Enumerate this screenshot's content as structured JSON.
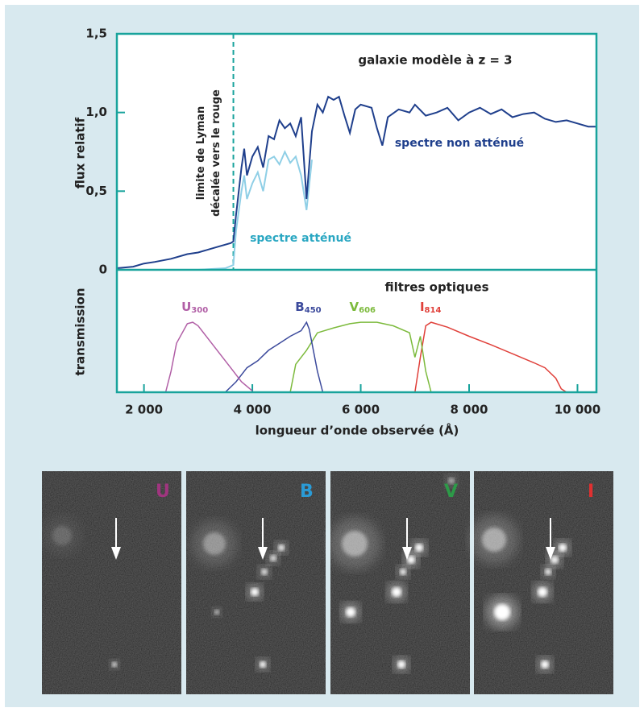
{
  "chart_data": [
    {
      "type": "line",
      "title": "galaxie modèle à z = 3",
      "y_label": "flux relatif",
      "xlim": [
        1500,
        10350
      ],
      "ylim": [
        0,
        1.5
      ],
      "yticks": [
        0,
        {
          "value": 0.5,
          "label": "0,5"
        },
        {
          "value": 1,
          "label": "1,0"
        },
        {
          "value": 1.5,
          "label": "1,5"
        }
      ],
      "annotation": {
        "x": 3650,
        "lines": [
          "limite de Lyman",
          "décalée vers le rouge"
        ]
      },
      "series": [
        {
          "name": "spectre non atténué",
          "color": "#1f3f8c",
          "x": [
            1500,
            1800,
            2000,
            2200,
            2500,
            2800,
            3000,
            3200,
            3400,
            3600,
            3650,
            3700,
            3800,
            3850,
            3900,
            4000,
            4100,
            4200,
            4300,
            4400,
            4500,
            4600,
            4700,
            4800,
            4900,
            5000,
            5100,
            5200,
            5300,
            5400,
            5500,
            5600,
            5700,
            5800,
            5900,
            6000,
            6200,
            6300,
            6400,
            6500,
            6700,
            6900,
            7000,
            7200,
            7400,
            7600,
            7800,
            8000,
            8200,
            8400,
            8600,
            8800,
            9000,
            9200,
            9400,
            9600,
            9800,
            10000,
            10200,
            10350
          ],
          "values": [
            0.01,
            0.02,
            0.04,
            0.05,
            0.07,
            0.1,
            0.11,
            0.13,
            0.15,
            0.17,
            0.18,
            0.35,
            0.65,
            0.77,
            0.6,
            0.72,
            0.78,
            0.65,
            0.85,
            0.83,
            0.95,
            0.9,
            0.93,
            0.85,
            0.97,
            0.45,
            0.88,
            1.05,
            1.0,
            1.1,
            1.08,
            1.1,
            0.98,
            0.87,
            1.02,
            1.05,
            1.03,
            0.9,
            0.79,
            0.97,
            1.02,
            1.0,
            1.05,
            0.98,
            1.0,
            1.03,
            0.95,
            1.0,
            1.03,
            0.99,
            1.02,
            0.97,
            0.99,
            1.0,
            0.96,
            0.94,
            0.95,
            0.93,
            0.91,
            0.91
          ]
        },
        {
          "name": "spectre atténué",
          "color": "#8fcfe6",
          "x": [
            1500,
            3000,
            3500,
            3650,
            3700,
            3800,
            3850,
            3900,
            4000,
            4100,
            4200,
            4300,
            4400,
            4500,
            4600,
            4700,
            4800,
            4900,
            5000,
            5100
          ],
          "values": [
            0,
            0,
            0.01,
            0.03,
            0.25,
            0.5,
            0.6,
            0.45,
            0.55,
            0.62,
            0.5,
            0.7,
            0.72,
            0.67,
            0.75,
            0.68,
            0.72,
            0.6,
            0.38,
            0.7
          ]
        }
      ]
    },
    {
      "type": "line",
      "title": "filtres optiques",
      "y_label": "transmission",
      "x_label": "longueur d’onde observée (Å)",
      "xlim": [
        1500,
        10350
      ],
      "ylim": [
        0,
        1.75
      ],
      "xticks": [
        {
          "value": 2000,
          "label": "2 000"
        },
        {
          "value": 4000,
          "label": "4 000"
        },
        {
          "value": 6000,
          "label": "6 000"
        },
        {
          "value": 8000,
          "label": "8 000"
        },
        {
          "value": 10000,
          "label": "10 000"
        }
      ],
      "series": [
        {
          "name": "U",
          "subscript": "300",
          "color": "#b15fa6",
          "x": [
            2400,
            2500,
            2600,
            2800,
            2900,
            3000,
            3200,
            3400,
            3600,
            3800,
            4000
          ],
          "values": [
            0,
            0.3,
            0.7,
            0.98,
            1.0,
            0.95,
            0.75,
            0.55,
            0.35,
            0.15,
            0.02
          ]
        },
        {
          "name": "B",
          "subscript": "450",
          "color": "#3c4a9c",
          "x": [
            3500,
            3700,
            3900,
            4100,
            4300,
            4500,
            4700,
            4900,
            5000,
            5050,
            5200,
            5300
          ],
          "values": [
            0,
            0.15,
            0.35,
            0.45,
            0.6,
            0.7,
            0.8,
            0.88,
            1.0,
            0.9,
            0.3,
            0
          ]
        },
        {
          "name": "V",
          "subscript": "606",
          "color": "#7cba3c",
          "x": [
            4700,
            4800,
            5000,
            5200,
            5500,
            5800,
            6000,
            6300,
            6600,
            6900,
            7000,
            7100,
            7200,
            7300
          ],
          "values": [
            0,
            0.4,
            0.6,
            0.85,
            0.92,
            0.98,
            1.0,
            1.0,
            0.95,
            0.85,
            0.5,
            0.8,
            0.3,
            0
          ]
        },
        {
          "name": "I",
          "subscript": "814",
          "color": "#e0403a",
          "x": [
            7000,
            7100,
            7200,
            7300,
            7600,
            8000,
            8400,
            8800,
            9200,
            9400,
            9600,
            9700,
            9800
          ],
          "values": [
            0,
            0.5,
            0.95,
            1.0,
            0.93,
            0.8,
            0.68,
            0.55,
            0.42,
            0.35,
            0.2,
            0.05,
            0
          ]
        }
      ]
    }
  ],
  "images": {
    "labels": [
      "U",
      "B",
      "V",
      "I"
    ],
    "colors": [
      "#a0357f",
      "#2a9bd6",
      "#2d9a48",
      "#e03030"
    ]
  }
}
